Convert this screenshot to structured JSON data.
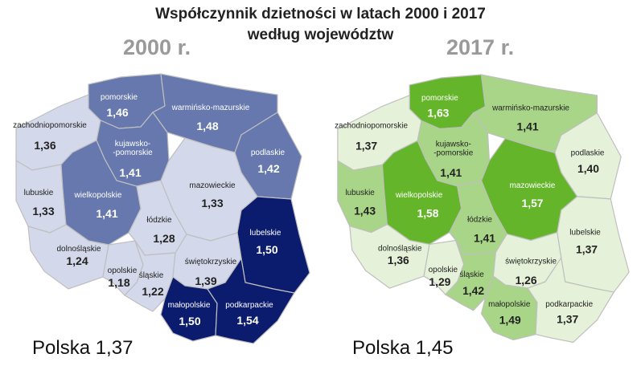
{
  "title_line1": "Współczynnik dzietności w latach 2000 i 2017",
  "title_line2": "według województw",
  "maps": [
    {
      "year_label": "2000 r.",
      "total_label": "Polska 1,37",
      "voivodeships": [
        {
          "name": "pomorskie",
          "value": "1,46",
          "color": "#6678ad"
        },
        {
          "name": "warmińsko-mazurskie",
          "value": "1,48",
          "color": "#6678ad"
        },
        {
          "name": "zachodniopomorskie",
          "value": "1,36",
          "color": "#d3d8ea"
        },
        {
          "name": "kujawsko-\n-pomorskie",
          "value": "1,41",
          "color": "#6678ad"
        },
        {
          "name": "podlaskie",
          "value": "1,42",
          "color": "#6678ad"
        },
        {
          "name": "lubuskie",
          "value": "1,33",
          "color": "#d3d8ea"
        },
        {
          "name": "wielkopolskie",
          "value": "1,41",
          "color": "#6678ad"
        },
        {
          "name": "mazowieckie",
          "value": "1,33",
          "color": "#d3d8ea"
        },
        {
          "name": "łódzkie",
          "value": "1,28",
          "color": "#d3d8ea"
        },
        {
          "name": "lubelskie",
          "value": "1,50",
          "color": "#0b1c6e"
        },
        {
          "name": "dolnośląskie",
          "value": "1,24",
          "color": "#d3d8ea"
        },
        {
          "name": "opolskie",
          "value": "1,18",
          "color": "#d3d8ea"
        },
        {
          "name": "śląskie",
          "value": "1,22",
          "color": "#d3d8ea"
        },
        {
          "name": "świętokrzyskie",
          "value": "1,39",
          "color": "#d3d8ea"
        },
        {
          "name": "małopolskie",
          "value": "1,50",
          "color": "#0b1c6e"
        },
        {
          "name": "podkarpackie",
          "value": "1,54",
          "color": "#0b1c6e"
        }
      ]
    },
    {
      "year_label": "2017 r.",
      "total_label": "Polska 1,45",
      "voivodeships": [
        {
          "name": "pomorskie",
          "value": "1,63",
          "color": "#64b52a"
        },
        {
          "name": "warmińsko-mazurskie",
          "value": "1,41",
          "color": "#a8d587"
        },
        {
          "name": "zachodniopomorskie",
          "value": "1,37",
          "color": "#e5f1d8"
        },
        {
          "name": "kujawsko-\n-pomorskie",
          "value": "1,41",
          "color": "#a8d587"
        },
        {
          "name": "podlaskie",
          "value": "1,40",
          "color": "#e5f1d8"
        },
        {
          "name": "lubuskie",
          "value": "1,43",
          "color": "#a8d587"
        },
        {
          "name": "wielkopolskie",
          "value": "1,58",
          "color": "#64b52a"
        },
        {
          "name": "mazowieckie",
          "value": "1,57",
          "color": "#64b52a"
        },
        {
          "name": "łódzkie",
          "value": "1,41",
          "color": "#a8d587"
        },
        {
          "name": "lubelskie",
          "value": "1,37",
          "color": "#e5f1d8"
        },
        {
          "name": "dolnośląskie",
          "value": "1,36",
          "color": "#e5f1d8"
        },
        {
          "name": "opolskie",
          "value": "1,29",
          "color": "#e5f1d8"
        },
        {
          "name": "śląskie",
          "value": "1,42",
          "color": "#a8d587"
        },
        {
          "name": "świętokrzyskie",
          "value": "1,26",
          "color": "#e5f1d8"
        },
        {
          "name": "małopolskie",
          "value": "1,49",
          "color": "#a8d587"
        },
        {
          "name": "podkarpackie",
          "value": "1,37",
          "color": "#e5f1d8"
        }
      ]
    }
  ]
}
